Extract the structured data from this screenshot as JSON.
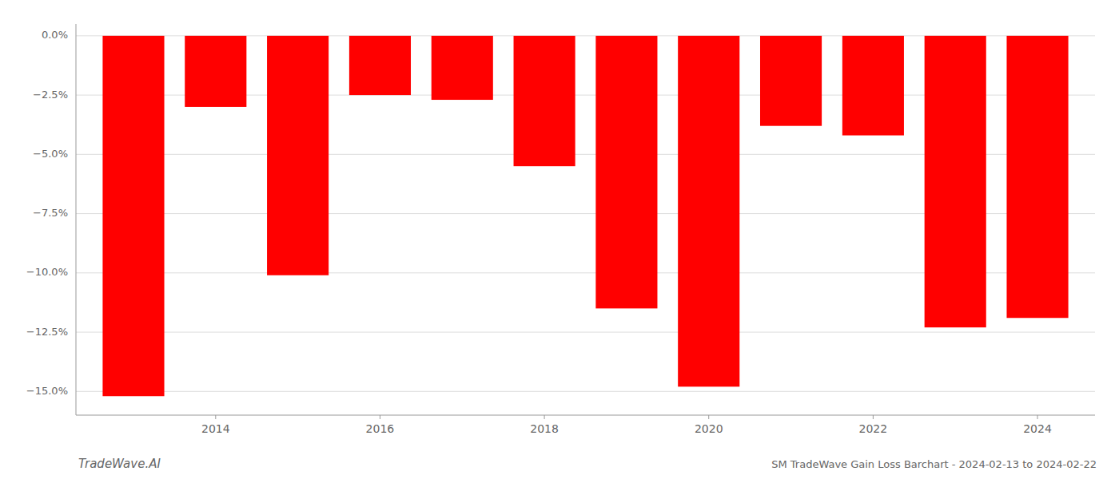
{
  "chart_data": {
    "type": "bar",
    "title": "SM TradeWave Gain Loss Barchart - 2024-02-13 to 2024-02-22",
    "annotations": [
      "TradeWave.AI"
    ],
    "x": [
      2013,
      2014,
      2015,
      2016,
      2017,
      2018,
      2019,
      2020,
      2021,
      2022,
      2023,
      2024
    ],
    "values": [
      -15.2,
      -3.0,
      -10.1,
      -2.5,
      -2.7,
      -5.5,
      -11.5,
      -14.8,
      -3.8,
      -4.2,
      -12.3,
      -11.9
    ],
    "color": "#ff0000",
    "xlim": [
      2012.3,
      2024.7
    ],
    "xticks": [
      2014,
      2016,
      2018,
      2020,
      2022,
      2024
    ],
    "ylim": [
      -16.0,
      0.5
    ],
    "yticks": [
      {
        "value": 0.0,
        "label": "0.0%"
      },
      {
        "value": -2.5,
        "label": "−2.5%"
      },
      {
        "value": -5.0,
        "label": "−5.0%"
      },
      {
        "value": -7.5,
        "label": "−7.5%"
      },
      {
        "value": -10.0,
        "label": "−10.0%"
      },
      {
        "value": -12.5,
        "label": "−12.5%"
      },
      {
        "value": -15.0,
        "label": "−15.0%"
      }
    ],
    "grid": true
  }
}
